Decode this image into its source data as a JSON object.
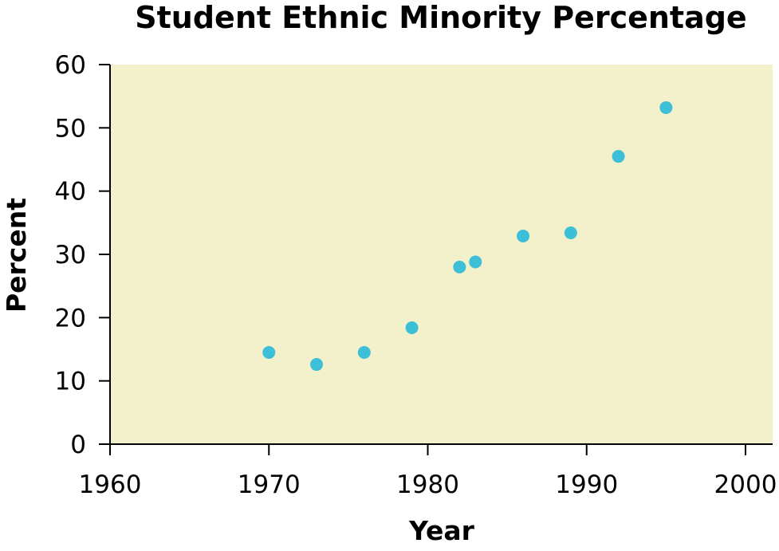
{
  "chart_data": {
    "type": "scatter",
    "title": "Student Ethnic Minority Percentage",
    "xlabel": "Year",
    "ylabel": "Percent",
    "xlim": [
      1960,
      2002
    ],
    "ylim": [
      0,
      60
    ],
    "xticks": [
      1960,
      1970,
      1980,
      1990,
      2000
    ],
    "yticks": [
      0,
      10,
      20,
      30,
      40,
      50,
      60
    ],
    "grid": false,
    "legend": false,
    "series": [
      {
        "x": [
          1970,
          1973,
          1976,
          1979,
          1982,
          1983,
          1986,
          1989,
          1992,
          1995
        ],
        "y": [
          14.5,
          12.6,
          14.5,
          18.4,
          28.0,
          28.8,
          32.9,
          33.4,
          45.5,
          53.2
        ]
      }
    ],
    "colors": {
      "plot_background": "#f2f1cc",
      "marker": "#3ebfd8",
      "axis": "#000000"
    }
  }
}
